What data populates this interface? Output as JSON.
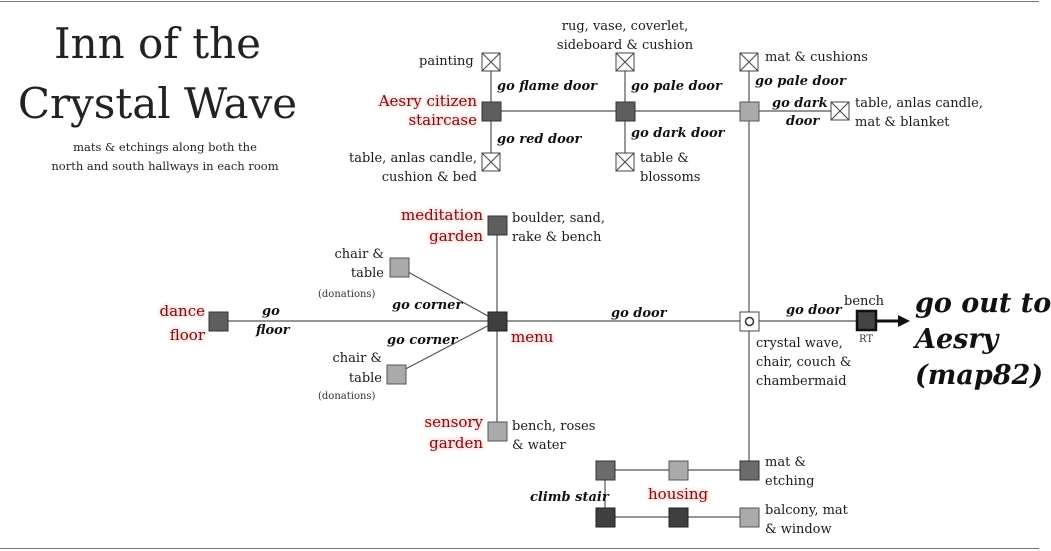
{
  "title": {
    "line1": "Inn of the",
    "line2": "Crystal Wave"
  },
  "subtitle": {
    "line1": "mats & etchings along both the",
    "line2": "north and south hallways in each room"
  },
  "rooms": {
    "painting": "painting",
    "rug": {
      "line1": "rug, vase, coverlet,",
      "line2": "sideboard & cushion"
    },
    "mat_cushions": "mat & cushions",
    "table_candle_blanket": {
      "line1": "table, anlas candle,",
      "line2": "mat & blanket"
    },
    "table_candle_bed": {
      "line1": "table, anlas candle,",
      "line2": "cushion & bed"
    },
    "table_blossoms": {
      "line1": "table &",
      "line2": "blossoms"
    },
    "boulder": {
      "line1": "boulder, sand,",
      "line2": "rake & bench"
    },
    "chair_top": {
      "line1": "chair &",
      "line2": "table",
      "note": "(donations)"
    },
    "chair_bottom": {
      "line1": "chair &",
      "line2": "table",
      "note": "(donations)"
    },
    "crystal": {
      "line1": "crystal wave,",
      "line2": "chair, couch &",
      "line3": "chambermaid"
    },
    "bench": "bench",
    "rt": "RT",
    "bench_roses": {
      "line1": "bench, roses",
      "line2": "& water"
    },
    "mat_etching": {
      "line1": "mat &",
      "line2": "etching"
    },
    "balcony": {
      "line1": "balcony, mat",
      "line2": "& window"
    }
  },
  "places": {
    "aesry_staircase": {
      "line1": "Aesry citizen",
      "line2": "staircase"
    },
    "meditation": {
      "line1": "meditation",
      "line2": "garden"
    },
    "dance": {
      "line1": "dance",
      "line2": "floor"
    },
    "menu": "menu",
    "sensory": {
      "line1": "sensory",
      "line2": "garden"
    },
    "housing": "housing"
  },
  "commands": {
    "flame": "go flame door",
    "pale1": "go pale door",
    "pale2": "go pale door",
    "dark1": {
      "line1": "go dark",
      "line2": "door"
    },
    "red": "go red door",
    "dark2": "go dark door",
    "floor": {
      "line1": "go",
      "line2": "floor"
    },
    "corner1": "go corner",
    "corner2": "go corner",
    "door1": "go door",
    "door2": "go door",
    "climb": "climb stair"
  },
  "exit": {
    "line1": "go out to",
    "line2": "Aesry",
    "line3": "(map82)"
  },
  "colors": {
    "dark": "#444444",
    "mid": "#6b6b6b",
    "light": "#aaaaaa",
    "label_red": "#7a1010",
    "line": "#555555"
  }
}
